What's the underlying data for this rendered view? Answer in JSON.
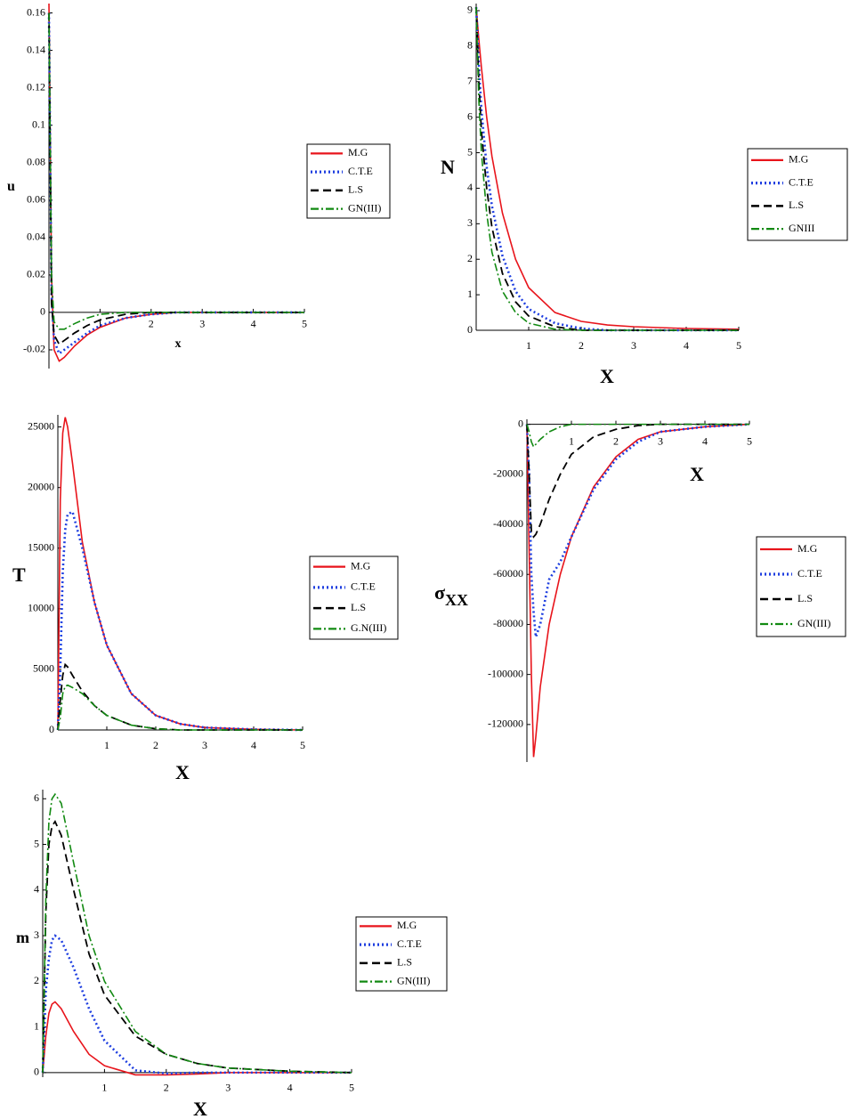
{
  "chart_data": [
    {
      "type": "line",
      "ylabel": "u",
      "xlabel": "x",
      "x": [
        0,
        0.05,
        0.1,
        0.2,
        0.3,
        0.5,
        0.75,
        1,
        1.5,
        2,
        2.5,
        3,
        4,
        5
      ],
      "xlim": [
        0,
        5
      ],
      "xticks": [
        1,
        2,
        3,
        4,
        5
      ],
      "ylim": [
        -0.03,
        0.165
      ],
      "yticks": [
        -0.02,
        0,
        0.02,
        0.04,
        0.06,
        0.08,
        0.1,
        0.12,
        0.14,
        0.16
      ],
      "series": [
        {
          "name": "M.G",
          "color": "#e8141b",
          "line_style": "solid",
          "values": [
            0.165,
            0.02,
            -0.02,
            -0.026,
            -0.024,
            -0.018,
            -0.012,
            -0.008,
            -0.003,
            -0.001,
            0,
            0,
            0,
            0
          ]
        },
        {
          "name": "C.T.E",
          "color": "#1f3fe0",
          "line_style": "dotted",
          "values": [
            0.16,
            0.01,
            -0.015,
            -0.022,
            -0.02,
            -0.016,
            -0.011,
            -0.007,
            -0.003,
            -0.001,
            0,
            0,
            0,
            0
          ]
        },
        {
          "name": "L.S",
          "color": "#000000",
          "line_style": "dashed",
          "values": [
            0.16,
            0.005,
            -0.012,
            -0.017,
            -0.015,
            -0.011,
            -0.007,
            -0.004,
            -0.001,
            0,
            0,
            0,
            0,
            0
          ]
        },
        {
          "name": "GN(III)",
          "color": "#128a12",
          "line_style": "dashdot",
          "values": [
            0.16,
            0.02,
            -0.005,
            -0.009,
            -0.009,
            -0.006,
            -0.003,
            -0.001,
            0,
            0,
            0,
            0,
            0,
            0
          ]
        }
      ]
    },
    {
      "type": "line",
      "ylabel": "N",
      "xlabel": "X",
      "x": [
        0,
        0.05,
        0.1,
        0.2,
        0.3,
        0.5,
        0.75,
        1,
        1.5,
        2,
        2.5,
        3,
        4,
        5
      ],
      "xlim": [
        0,
        5
      ],
      "xticks": [
        1,
        2,
        3,
        4,
        5
      ],
      "ylim": [
        0,
        9.2
      ],
      "yticks": [
        0,
        1,
        2,
        3,
        4,
        5,
        6,
        7,
        8,
        9
      ],
      "series": [
        {
          "name": "M.G",
          "color": "#e8141b",
          "line_style": "solid",
          "values": [
            9.1,
            8.2,
            7.4,
            6.0,
            4.9,
            3.3,
            2.0,
            1.2,
            0.5,
            0.25,
            0.15,
            0.1,
            0.05,
            0.03
          ]
        },
        {
          "name": "C.T.E",
          "color": "#1f3fe0",
          "line_style": "dotted",
          "values": [
            9.1,
            7.5,
            6.2,
            4.6,
            3.5,
            2.1,
            1.1,
            0.6,
            0.2,
            0.05,
            0,
            0,
            0,
            0
          ]
        },
        {
          "name": "L.S",
          "color": "#000000",
          "line_style": "dashed",
          "values": [
            9.1,
            7.0,
            5.6,
            4.0,
            2.9,
            1.6,
            0.8,
            0.4,
            0.1,
            0,
            0,
            0,
            0,
            0
          ]
        },
        {
          "name": "GNIII",
          "color": "#128a12",
          "line_style": "dashdot",
          "values": [
            9.1,
            6.5,
            5.0,
            3.3,
            2.2,
            1.1,
            0.5,
            0.2,
            0.03,
            0,
            0,
            0,
            0,
            0
          ]
        }
      ]
    },
    {
      "type": "line",
      "ylabel": "T",
      "xlabel": "X",
      "x": [
        0,
        0.05,
        0.1,
        0.15,
        0.2,
        0.3,
        0.5,
        0.75,
        1,
        1.5,
        2,
        2.5,
        3,
        4,
        5
      ],
      "xlim": [
        0,
        5
      ],
      "xticks": [
        1,
        2,
        3,
        4,
        5
      ],
      "ylim": [
        0,
        26000
      ],
      "yticks": [
        0,
        5000,
        10000,
        15000,
        20000,
        25000
      ],
      "series": [
        {
          "name": "M.G",
          "color": "#e8141b",
          "line_style": "solid",
          "values": [
            0,
            19000,
            24500,
            25800,
            25000,
            22000,
            15500,
            10500,
            7000,
            3000,
            1200,
            500,
            200,
            50,
            0
          ]
        },
        {
          "name": "C.T.E",
          "color": "#1f3fe0",
          "line_style": "dotted",
          "values": [
            0,
            5000,
            13000,
            16500,
            17800,
            18000,
            15000,
            10500,
            7000,
            3000,
            1200,
            500,
            200,
            50,
            0
          ]
        },
        {
          "name": "L.S",
          "color": "#000000",
          "line_style": "dashed",
          "values": [
            0,
            2500,
            4500,
            5400,
            5200,
            4500,
            3200,
            2000,
            1200,
            400,
            100,
            0,
            0,
            0,
            0
          ]
        },
        {
          "name": "G.N(III)",
          "color": "#128a12",
          "line_style": "dashdot",
          "values": [
            0,
            1000,
            3000,
            3600,
            3700,
            3500,
            3000,
            2000,
            1200,
            400,
            100,
            0,
            0,
            0,
            0
          ]
        }
      ]
    },
    {
      "type": "line",
      "ylabel": "σ",
      "ylabel_subscript": "XX",
      "xlabel": "X",
      "x": [
        0,
        0.05,
        0.1,
        0.15,
        0.2,
        0.3,
        0.5,
        0.75,
        1,
        1.5,
        2,
        2.5,
        3,
        4,
        5
      ],
      "xlim": [
        0,
        5
      ],
      "xticks": [
        1,
        2,
        3,
        4,
        5
      ],
      "ylim": [
        -135000,
        2000
      ],
      "yticks": [
        0,
        -20000,
        -40000,
        -60000,
        -80000,
        -100000,
        -120000
      ],
      "series": [
        {
          "name": "M.G",
          "color": "#e8141b",
          "line_style": "solid",
          "values": [
            0,
            -50000,
            -100000,
            -133000,
            -125000,
            -105000,
            -80000,
            -60000,
            -45000,
            -25000,
            -13000,
            -6000,
            -3000,
            -1000,
            0
          ]
        },
        {
          "name": "C.T.E",
          "color": "#1f3fe0",
          "line_style": "dotted",
          "values": [
            0,
            -20000,
            -60000,
            -75000,
            -85000,
            -80000,
            -62000,
            -55000,
            -45000,
            -26000,
            -14000,
            -7000,
            -3000,
            -1000,
            0
          ]
        },
        {
          "name": "L.S",
          "color": "#000000",
          "line_style": "dashed",
          "values": [
            0,
            -20000,
            -43000,
            -45000,
            -44000,
            -40000,
            -30000,
            -20000,
            -12000,
            -5000,
            -2000,
            -500,
            0,
            0,
            0
          ]
        },
        {
          "name": "GN(III)",
          "color": "#128a12",
          "line_style": "dashdot",
          "values": [
            0,
            -3000,
            -7000,
            -9000,
            -8000,
            -6000,
            -3000,
            -1000,
            0,
            0,
            0,
            0,
            0,
            0,
            0
          ]
        }
      ]
    },
    {
      "type": "line",
      "ylabel": "m",
      "xlabel": "X",
      "x": [
        0,
        0.05,
        0.1,
        0.15,
        0.2,
        0.3,
        0.5,
        0.75,
        1,
        1.5,
        2,
        2.5,
        3,
        4,
        5
      ],
      "xlim": [
        0,
        5
      ],
      "xticks": [
        1,
        2,
        3,
        4,
        5
      ],
      "ylim": [
        -0.1,
        6.2
      ],
      "yticks": [
        0,
        1,
        2,
        3,
        4,
        5,
        6
      ],
      "series": [
        {
          "name": "M.G",
          "color": "#e8141b",
          "line_style": "solid",
          "values": [
            0,
            0.8,
            1.3,
            1.5,
            1.55,
            1.4,
            0.9,
            0.4,
            0.15,
            -0.05,
            -0.05,
            -0.03,
            0,
            0,
            0
          ]
        },
        {
          "name": "C.T.E",
          "color": "#1f3fe0",
          "line_style": "dotted",
          "values": [
            0,
            1.8,
            2.5,
            2.9,
            3.0,
            2.9,
            2.3,
            1.4,
            0.7,
            0.05,
            -0.02,
            0,
            0,
            0,
            0
          ]
        },
        {
          "name": "L.S",
          "color": "#000000",
          "line_style": "dashed",
          "values": [
            0,
            3.5,
            5.0,
            5.4,
            5.5,
            5.2,
            4.0,
            2.6,
            1.7,
            0.8,
            0.4,
            0.2,
            0.1,
            0.03,
            0
          ]
        },
        {
          "name": "GN(III)",
          "color": "#128a12",
          "line_style": "dashdot",
          "values": [
            0,
            3.8,
            5.5,
            6.0,
            6.1,
            5.9,
            4.6,
            3.0,
            2.0,
            0.9,
            0.4,
            0.2,
            0.1,
            0.03,
            0
          ]
        }
      ]
    }
  ]
}
